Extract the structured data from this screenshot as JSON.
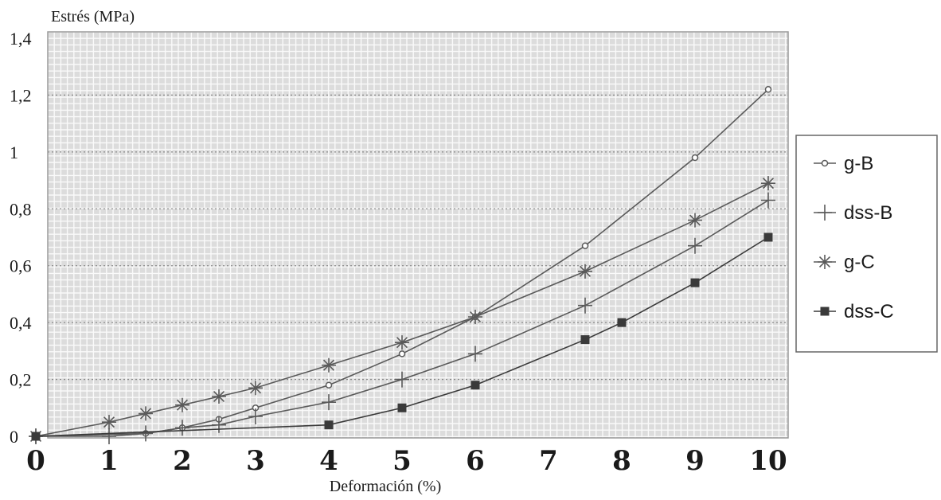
{
  "chart_data": {
    "type": "line",
    "title": "",
    "ylabel": "Estrés (MPa)",
    "xlabel": "Deformación (%)",
    "xlim": [
      0,
      10
    ],
    "ylim": [
      0,
      1.4
    ],
    "x_ticks": [
      "0",
      "1",
      "2",
      "3",
      "4",
      "5",
      "6",
      "7",
      "8",
      "9",
      "10"
    ],
    "y_ticks": [
      {
        "value": 0,
        "label": "0"
      },
      {
        "value": 0.2,
        "label": "0,2"
      },
      {
        "value": 0.4,
        "label": "0,4"
      },
      {
        "value": 0.6,
        "label": "0,6"
      },
      {
        "value": 0.8,
        "label": "0,8"
      },
      {
        "value": 1.0,
        "label": "1"
      },
      {
        "value": 1.2,
        "label": "1,2"
      },
      {
        "value": 1.4,
        "label": "1,4"
      }
    ],
    "grid": true,
    "legend_position": "right",
    "series": [
      {
        "name": "g-B",
        "marker": "circle",
        "color": "#5a5a5a",
        "points": [
          [
            0,
            0
          ],
          [
            1.5,
            0.01
          ],
          [
            2,
            0.03
          ],
          [
            2.5,
            0.06
          ],
          [
            3,
            0.1
          ],
          [
            4,
            0.18
          ],
          [
            5,
            0.29
          ],
          [
            6,
            0.42
          ],
          [
            7.5,
            0.67
          ],
          [
            9,
            0.98
          ],
          [
            10,
            1.22
          ]
        ]
      },
      {
        "name": "dss-B",
        "marker": "plus",
        "color": "#5a5a5a",
        "points": [
          [
            0,
            0
          ],
          [
            1,
            0.0
          ],
          [
            1.5,
            0.01
          ],
          [
            2,
            0.03
          ],
          [
            2.5,
            0.04
          ],
          [
            3,
            0.07
          ],
          [
            4,
            0.12
          ],
          [
            5,
            0.2
          ],
          [
            6,
            0.29
          ],
          [
            7.5,
            0.46
          ],
          [
            9,
            0.67
          ],
          [
            10,
            0.83
          ]
        ]
      },
      {
        "name": "g-C",
        "marker": "asterisk",
        "color": "#5a5a5a",
        "points": [
          [
            0,
            0
          ],
          [
            1,
            0.05
          ],
          [
            1.5,
            0.08
          ],
          [
            2,
            0.11
          ],
          [
            2.5,
            0.14
          ],
          [
            3,
            0.17
          ],
          [
            4,
            0.25
          ],
          [
            5,
            0.33
          ],
          [
            6,
            0.42
          ],
          [
            7.5,
            0.58
          ],
          [
            9,
            0.76
          ],
          [
            10,
            0.89
          ]
        ]
      },
      {
        "name": "dss-C",
        "marker": "square",
        "color": "#3a3a3a",
        "points": [
          [
            0,
            0
          ],
          [
            4,
            0.04
          ],
          [
            5,
            0.1
          ],
          [
            6,
            0.18
          ],
          [
            7.5,
            0.34
          ],
          [
            8,
            0.4
          ],
          [
            9,
            0.54
          ],
          [
            10,
            0.7
          ]
        ]
      }
    ]
  }
}
